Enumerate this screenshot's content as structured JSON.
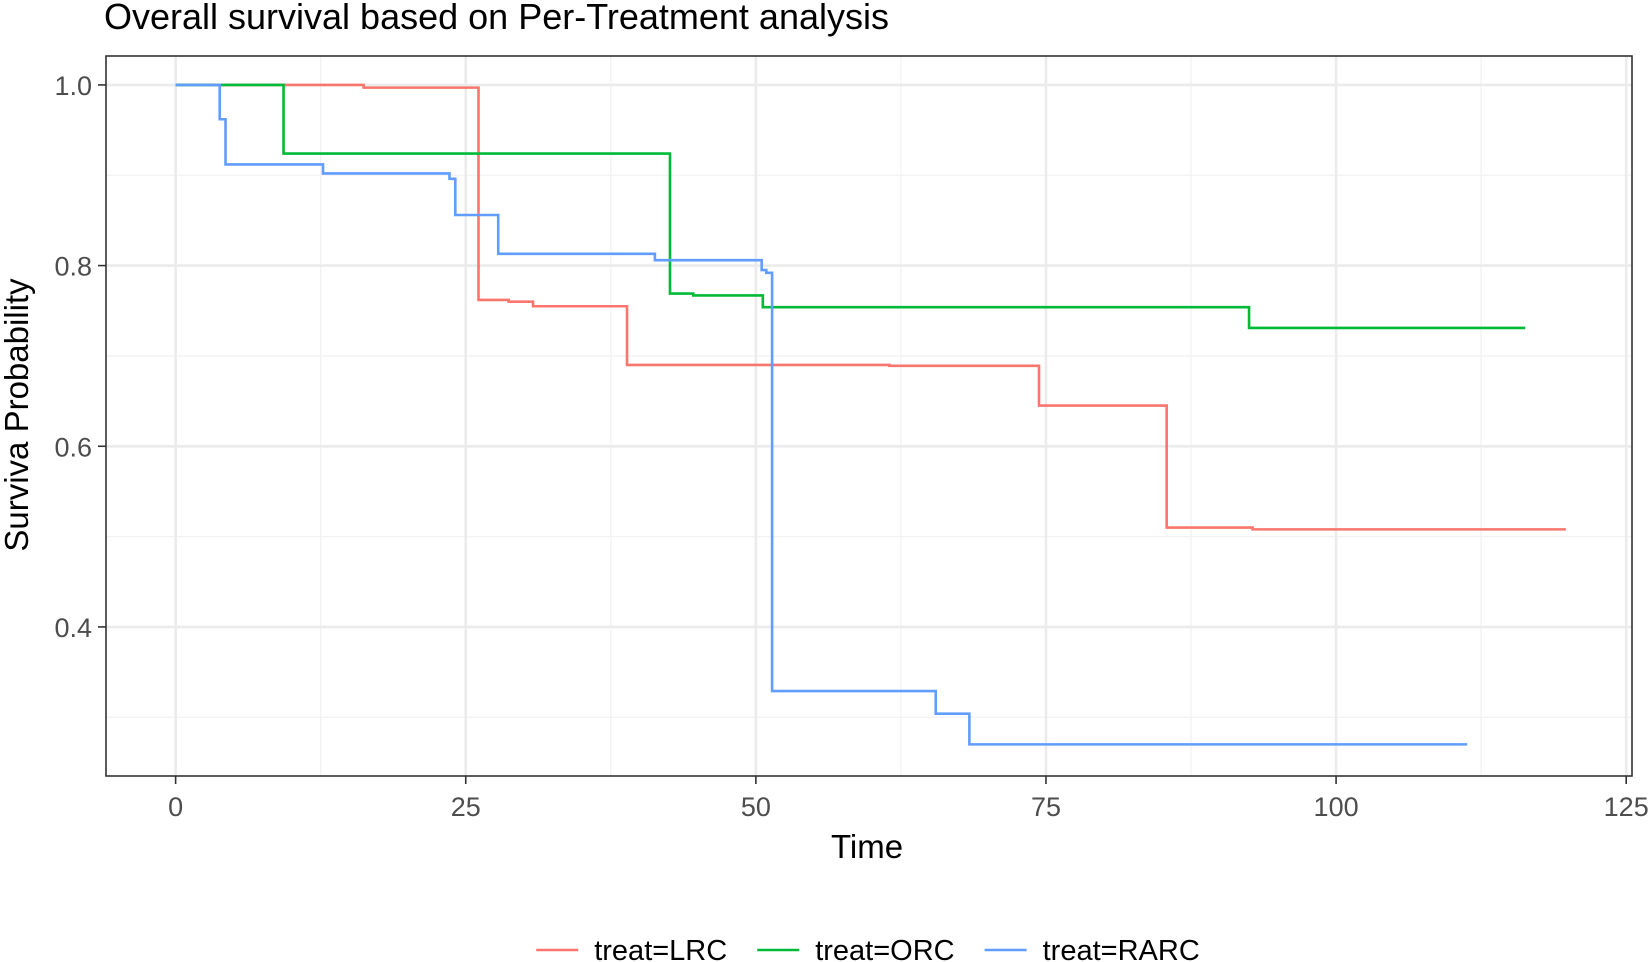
{
  "chart_data": {
    "type": "line",
    "title": "Overall survival based on Per-Treatment analysis",
    "xlabel": "Time",
    "ylabel": "Surviva Probability",
    "xlim": [
      -6,
      125.5
    ],
    "ylim": [
      0.235,
      1.032
    ],
    "x_ticks": [
      0,
      25,
      50,
      75,
      100,
      125
    ],
    "x_tick_labels": [
      "0",
      "25",
      "50",
      "75",
      "100",
      "125"
    ],
    "y_ticks": [
      0.4,
      0.6,
      0.8,
      1.0
    ],
    "y_tick_labels": [
      "0.4",
      "0.6",
      "0.8",
      "1.0"
    ],
    "grid": true,
    "legend_position": "bottom",
    "series": [
      {
        "name": "treat=LRC",
        "color": "#F8766D",
        "x": [
          0,
          16.2,
          26.1,
          28.7,
          30.8,
          38.9,
          61.5,
          74.4,
          85.4,
          92.8,
          119.8
        ],
        "values": [
          1.0,
          0.997,
          0.762,
          0.76,
          0.755,
          0.69,
          0.689,
          0.645,
          0.51,
          0.508,
          0.508
        ]
      },
      {
        "name": "treat=ORC",
        "color": "#00BA38",
        "x": [
          0,
          9.3,
          42.6,
          44.6,
          50.6,
          92.5,
          116.3
        ],
        "values": [
          1.0,
          0.924,
          0.769,
          0.767,
          0.754,
          0.731,
          0.731
        ]
      },
      {
        "name": "treat=RARC",
        "color": "#619CFF",
        "x": [
          0,
          3.8,
          4.3,
          12.7,
          23.6,
          24.1,
          27.8,
          41.3,
          50.5,
          50.9,
          51.4,
          65.5,
          68.4,
          111.3
        ],
        "values": [
          1.0,
          0.962,
          0.912,
          0.902,
          0.896,
          0.856,
          0.813,
          0.806,
          0.795,
          0.792,
          0.329,
          0.304,
          0.27,
          0.27
        ]
      }
    ]
  }
}
